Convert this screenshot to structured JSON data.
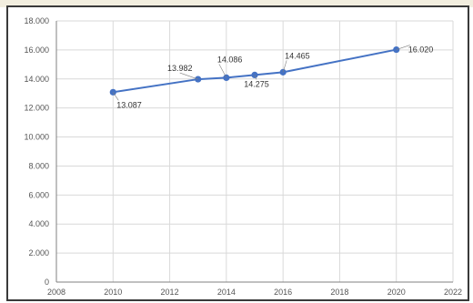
{
  "chart_data": {
    "type": "line",
    "title": "",
    "xlabel": "",
    "ylabel": "",
    "xlim": [
      2008,
      2022
    ],
    "ylim": [
      0,
      18000
    ],
    "x_ticks": [
      2008,
      2010,
      2012,
      2014,
      2016,
      2018,
      2020,
      2022
    ],
    "x_tick_labels": [
      "2008",
      "2010",
      "2012",
      "2014",
      "2016",
      "2018",
      "2020",
      "2022"
    ],
    "y_ticks": [
      0,
      2000,
      4000,
      6000,
      8000,
      10000,
      12000,
      14000,
      16000,
      18000
    ],
    "y_tick_labels": [
      "0",
      "2.000",
      "4.000",
      "6.000",
      "8.000",
      "10.000",
      "12.000",
      "14.000",
      "16.000",
      "18.000"
    ],
    "grid": true,
    "legend": "none",
    "series": [
      {
        "x": [
          2010,
          2013,
          2014,
          2015,
          2016,
          2020
        ],
        "y": [
          13087,
          13982,
          14086,
          14275,
          14465,
          16020
        ],
        "labels": [
          "13.087",
          "13.982",
          "14.086",
          "14.275",
          "14.465",
          "16.020"
        ]
      }
    ],
    "colors": {
      "line": "#4472c4",
      "grid": "#d9d9d9",
      "axis": "#808080"
    }
  }
}
